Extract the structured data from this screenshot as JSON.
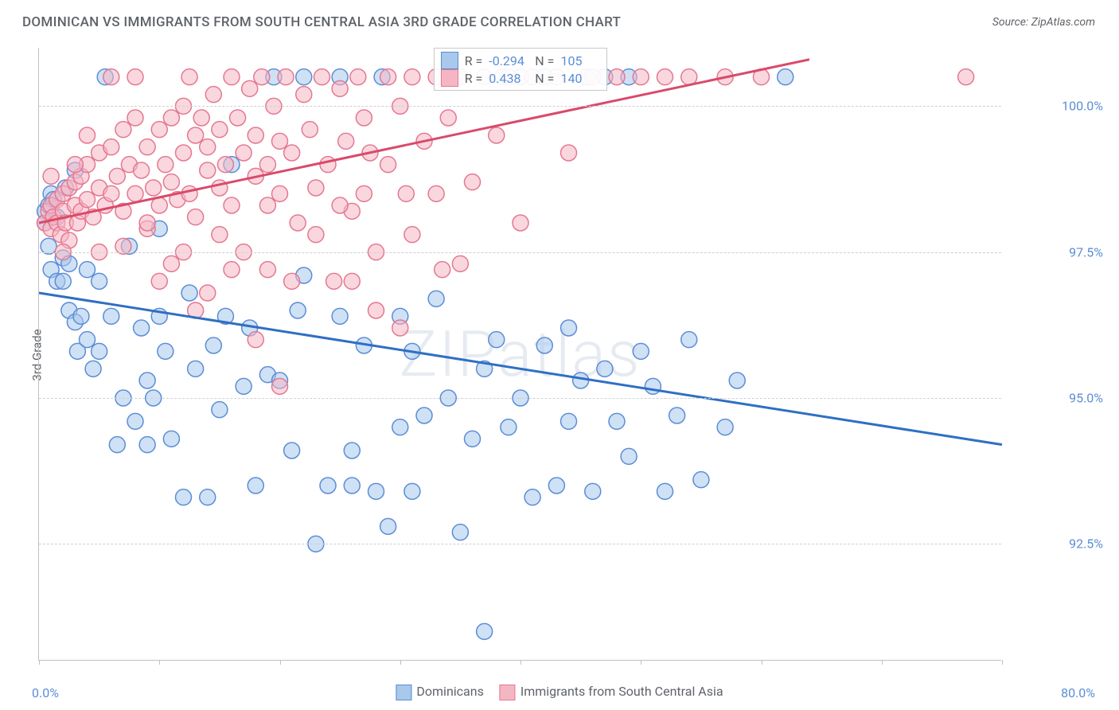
{
  "title": "DOMINICAN VS IMMIGRANTS FROM SOUTH CENTRAL ASIA 3RD GRADE CORRELATION CHART",
  "source": "Source: ZipAtlas.com",
  "ylabel": "3rd Grade",
  "watermark": "ZIPatlas",
  "xlim": [
    0,
    80
  ],
  "ylim": [
    90.5,
    101
  ],
  "xticks": [
    0,
    10,
    20,
    30,
    40,
    50,
    60,
    70,
    80
  ],
  "yticks": [
    92.5,
    95.0,
    97.5,
    100.0
  ],
  "ytick_labels": [
    "92.5%",
    "95.0%",
    "97.5%",
    "100.0%"
  ],
  "xtick_label_left": "0.0%",
  "xtick_label_right": "80.0%",
  "series": [
    {
      "name": "Dominicans",
      "fill": "#a8c8ec",
      "stroke": "#5b8dd6",
      "line_color": "#2f6fc4",
      "R": "-0.294",
      "N": "105",
      "trend": {
        "x1": 0,
        "y1": 96.8,
        "x2": 80,
        "y2": 94.2
      },
      "points": [
        [
          0.5,
          98.2
        ],
        [
          0.5,
          98.0
        ],
        [
          0.8,
          98.3
        ],
        [
          0.8,
          97.6
        ],
        [
          1.0,
          98.5
        ],
        [
          1.0,
          97.2
        ],
        [
          1.2,
          98.4
        ],
        [
          1.5,
          98.1
        ],
        [
          1.5,
          97.0
        ],
        [
          2.0,
          97.4
        ],
        [
          2.0,
          97.0
        ],
        [
          2.2,
          98.6
        ],
        [
          2.5,
          96.5
        ],
        [
          2.5,
          97.3
        ],
        [
          3.0,
          98.9
        ],
        [
          3.0,
          96.3
        ],
        [
          3.2,
          95.8
        ],
        [
          3.5,
          96.4
        ],
        [
          4.0,
          97.2
        ],
        [
          4.0,
          96.0
        ],
        [
          4.5,
          95.5
        ],
        [
          5.0,
          97.0
        ],
        [
          5.0,
          95.8
        ],
        [
          5.5,
          100.5
        ],
        [
          6.0,
          96.4
        ],
        [
          6.5,
          94.2
        ],
        [
          7.0,
          95.0
        ],
        [
          7.5,
          97.6
        ],
        [
          8.0,
          94.6
        ],
        [
          8.5,
          96.2
        ],
        [
          9.0,
          95.3
        ],
        [
          9.5,
          95.0
        ],
        [
          10,
          96.4
        ],
        [
          10,
          97.9
        ],
        [
          10.5,
          95.8
        ],
        [
          11,
          94.3
        ],
        [
          12,
          93.3
        ],
        [
          12.5,
          96.8
        ],
        [
          13,
          95.5
        ],
        [
          14,
          93.3
        ],
        [
          14.5,
          95.9
        ],
        [
          15,
          94.8
        ],
        [
          15.5,
          96.4
        ],
        [
          16,
          99.0
        ],
        [
          17,
          95.2
        ],
        [
          17.5,
          96.2
        ],
        [
          18,
          93.5
        ],
        [
          19,
          95.4
        ],
        [
          19.5,
          100.5
        ],
        [
          20,
          95.3
        ],
        [
          21,
          94.1
        ],
        [
          21.5,
          96.5
        ],
        [
          22,
          97.1
        ],
        [
          22,
          100.5
        ],
        [
          23,
          92.5
        ],
        [
          24,
          93.5
        ],
        [
          25,
          96.4
        ],
        [
          25,
          100.5
        ],
        [
          26,
          94.1
        ],
        [
          26,
          93.5
        ],
        [
          27,
          95.9
        ],
        [
          28,
          93.4
        ],
        [
          28.5,
          100.5
        ],
        [
          29,
          92.8
        ],
        [
          30,
          96.4
        ],
        [
          30,
          94.5
        ],
        [
          31,
          95.8
        ],
        [
          31,
          93.4
        ],
        [
          32,
          94.7
        ],
        [
          33,
          96.7
        ],
        [
          34,
          95.0
        ],
        [
          35,
          92.7
        ],
        [
          35,
          100.5
        ],
        [
          36,
          94.3
        ],
        [
          37,
          95.5
        ],
        [
          37,
          91.0
        ],
        [
          38,
          96.0
        ],
        [
          38.5,
          100.5
        ],
        [
          39,
          94.5
        ],
        [
          40,
          95.0
        ],
        [
          41,
          93.3
        ],
        [
          42,
          95.9
        ],
        [
          43,
          93.5
        ],
        [
          44,
          96.2
        ],
        [
          44,
          94.6
        ],
        [
          45,
          95.3
        ],
        [
          46,
          93.4
        ],
        [
          47,
          95.5
        ],
        [
          48,
          94.6
        ],
        [
          49,
          94.0
        ],
        [
          50,
          95.8
        ],
        [
          51,
          95.2
        ],
        [
          52,
          93.4
        ],
        [
          53,
          94.7
        ],
        [
          54,
          96.0
        ],
        [
          55,
          93.6
        ],
        [
          57,
          94.5
        ],
        [
          58,
          95.3
        ],
        [
          62,
          100.5
        ],
        [
          40,
          100.5
        ],
        [
          42,
          100.5
        ],
        [
          45.5,
          100.5
        ],
        [
          47,
          100.5
        ],
        [
          49,
          100.5
        ],
        [
          9,
          94.2
        ]
      ]
    },
    {
      "name": "Immigrants from South Central Asia",
      "fill": "#f5b6c4",
      "stroke": "#e5788f",
      "line_color": "#d94a6a",
      "R": "0.438",
      "N": "140",
      "trend": {
        "x1": 0,
        "y1": 98.0,
        "x2": 64,
        "y2": 100.8
      },
      "points": [
        [
          0.5,
          98.0
        ],
        [
          0.8,
          98.2
        ],
        [
          1.0,
          97.9
        ],
        [
          1.0,
          98.3
        ],
        [
          1.2,
          98.1
        ],
        [
          1.5,
          98.0
        ],
        [
          1.5,
          98.4
        ],
        [
          1.8,
          97.8
        ],
        [
          2.0,
          98.2
        ],
        [
          2.0,
          98.5
        ],
        [
          2.2,
          98.0
        ],
        [
          2.5,
          98.6
        ],
        [
          2.5,
          97.7
        ],
        [
          3.0,
          98.3
        ],
        [
          3.0,
          98.7
        ],
        [
          3.2,
          98.0
        ],
        [
          3.5,
          98.8
        ],
        [
          3.5,
          98.2
        ],
        [
          4.0,
          98.4
        ],
        [
          4.0,
          99.0
        ],
        [
          4.5,
          98.1
        ],
        [
          5.0,
          98.6
        ],
        [
          5.0,
          99.2
        ],
        [
          5.5,
          98.3
        ],
        [
          6.0,
          99.3
        ],
        [
          6.0,
          98.5
        ],
        [
          6.5,
          98.8
        ],
        [
          7.0,
          99.6
        ],
        [
          7.0,
          98.2
        ],
        [
          7.5,
          99.0
        ],
        [
          8.0,
          98.5
        ],
        [
          8.0,
          99.8
        ],
        [
          8.5,
          98.9
        ],
        [
          9.0,
          99.3
        ],
        [
          9.0,
          97.9
        ],
        [
          9.5,
          98.6
        ],
        [
          10,
          99.6
        ],
        [
          10,
          98.3
        ],
        [
          10.5,
          99.0
        ],
        [
          11,
          99.8
        ],
        [
          11,
          98.7
        ],
        [
          11.5,
          98.4
        ],
        [
          12,
          100.0
        ],
        [
          12,
          99.2
        ],
        [
          12.5,
          98.5
        ],
        [
          13,
          99.5
        ],
        [
          13,
          98.1
        ],
        [
          13.5,
          99.8
        ],
        [
          14,
          98.9
        ],
        [
          14,
          99.3
        ],
        [
          14.5,
          100.2
        ],
        [
          15,
          98.6
        ],
        [
          15,
          99.6
        ],
        [
          15.5,
          99.0
        ],
        [
          16,
          100.5
        ],
        [
          16,
          98.3
        ],
        [
          16.5,
          99.8
        ],
        [
          17,
          99.2
        ],
        [
          17,
          97.5
        ],
        [
          17.5,
          100.3
        ],
        [
          18,
          98.8
        ],
        [
          18,
          99.5
        ],
        [
          18.5,
          100.5
        ],
        [
          19,
          99.0
        ],
        [
          19,
          97.2
        ],
        [
          19.5,
          100.0
        ],
        [
          20,
          99.4
        ],
        [
          20,
          98.5
        ],
        [
          20.5,
          100.5
        ],
        [
          21,
          99.2
        ],
        [
          21.5,
          98.0
        ],
        [
          22,
          100.2
        ],
        [
          22.5,
          99.6
        ],
        [
          23,
          98.6
        ],
        [
          23.5,
          100.5
        ],
        [
          24,
          99.0
        ],
        [
          24.5,
          97.0
        ],
        [
          25,
          100.3
        ],
        [
          25.5,
          99.4
        ],
        [
          26,
          98.2
        ],
        [
          26.5,
          100.5
        ],
        [
          27,
          99.8
        ],
        [
          27.5,
          99.2
        ],
        [
          28,
          97.5
        ],
        [
          29,
          100.5
        ],
        [
          29,
          99.0
        ],
        [
          30,
          100.0
        ],
        [
          30.5,
          98.5
        ],
        [
          31,
          100.5
        ],
        [
          32,
          99.4
        ],
        [
          33,
          100.5
        ],
        [
          33.5,
          97.2
        ],
        [
          34,
          99.8
        ],
        [
          35,
          100.5
        ],
        [
          36,
          98.7
        ],
        [
          37,
          100.5
        ],
        [
          38,
          99.5
        ],
        [
          39,
          100.5
        ],
        [
          40,
          98.0
        ],
        [
          41,
          100.5
        ],
        [
          43,
          100.5
        ],
        [
          44,
          99.2
        ],
        [
          46,
          100.5
        ],
        [
          48,
          100.5
        ],
        [
          50,
          100.5
        ],
        [
          52,
          100.5
        ],
        [
          54,
          100.5
        ],
        [
          57,
          100.5
        ],
        [
          60,
          100.5
        ],
        [
          77,
          100.5
        ],
        [
          10,
          97.0
        ],
        [
          12,
          97.5
        ],
        [
          14,
          96.8
        ],
        [
          16,
          97.2
        ],
        [
          18,
          96.0
        ],
        [
          20,
          95.2
        ],
        [
          26,
          97.0
        ],
        [
          28,
          96.5
        ],
        [
          30,
          96.2
        ],
        [
          35,
          97.3
        ],
        [
          6,
          100.5
        ],
        [
          8,
          100.5
        ],
        [
          12.5,
          100.5
        ],
        [
          4,
          99.5
        ],
        [
          3,
          99.0
        ],
        [
          2,
          97.5
        ],
        [
          1,
          98.8
        ],
        [
          5,
          97.5
        ],
        [
          7,
          97.6
        ],
        [
          9,
          98.0
        ],
        [
          11,
          97.3
        ],
        [
          13,
          96.5
        ],
        [
          15,
          97.8
        ],
        [
          19,
          98.3
        ],
        [
          21,
          97.0
        ],
        [
          23,
          97.8
        ],
        [
          25,
          98.3
        ],
        [
          27,
          98.5
        ],
        [
          31,
          97.8
        ],
        [
          33,
          98.5
        ]
      ]
    }
  ],
  "bottom_legend": [
    {
      "label": "Dominicans",
      "fill": "#a8c8ec",
      "stroke": "#5b8dd6"
    },
    {
      "label": "Immigrants from South Central Asia",
      "fill": "#f5b6c4",
      "stroke": "#e5788f"
    }
  ],
  "stats_box": {
    "left_pct": 41,
    "top_pct": 0
  }
}
